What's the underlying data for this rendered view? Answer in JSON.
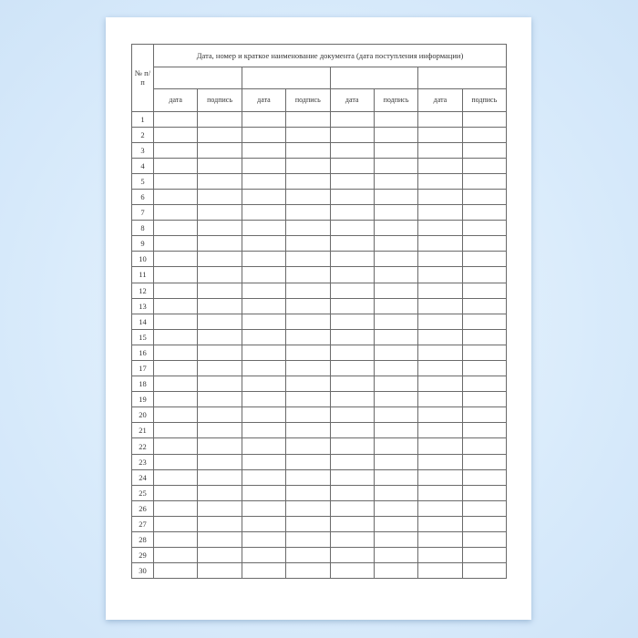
{
  "table": {
    "number_header": "№ п/п",
    "main_header": "Дата, номер и краткое наименование документа (дата поступления информации)",
    "groups": 4,
    "sub_headers": [
      "дата",
      "подпись",
      "дата",
      "подпись",
      "дата",
      "подпись",
      "дата",
      "подпись"
    ],
    "rows": [
      "1",
      "2",
      "3",
      "4",
      "5",
      "6",
      "7",
      "8",
      "9",
      "10",
      "11",
      "12",
      "13",
      "14",
      "15",
      "16",
      "17",
      "18",
      "19",
      "20",
      "21",
      "22",
      "23",
      "24",
      "25",
      "26",
      "27",
      "28",
      "29",
      "30"
    ]
  }
}
